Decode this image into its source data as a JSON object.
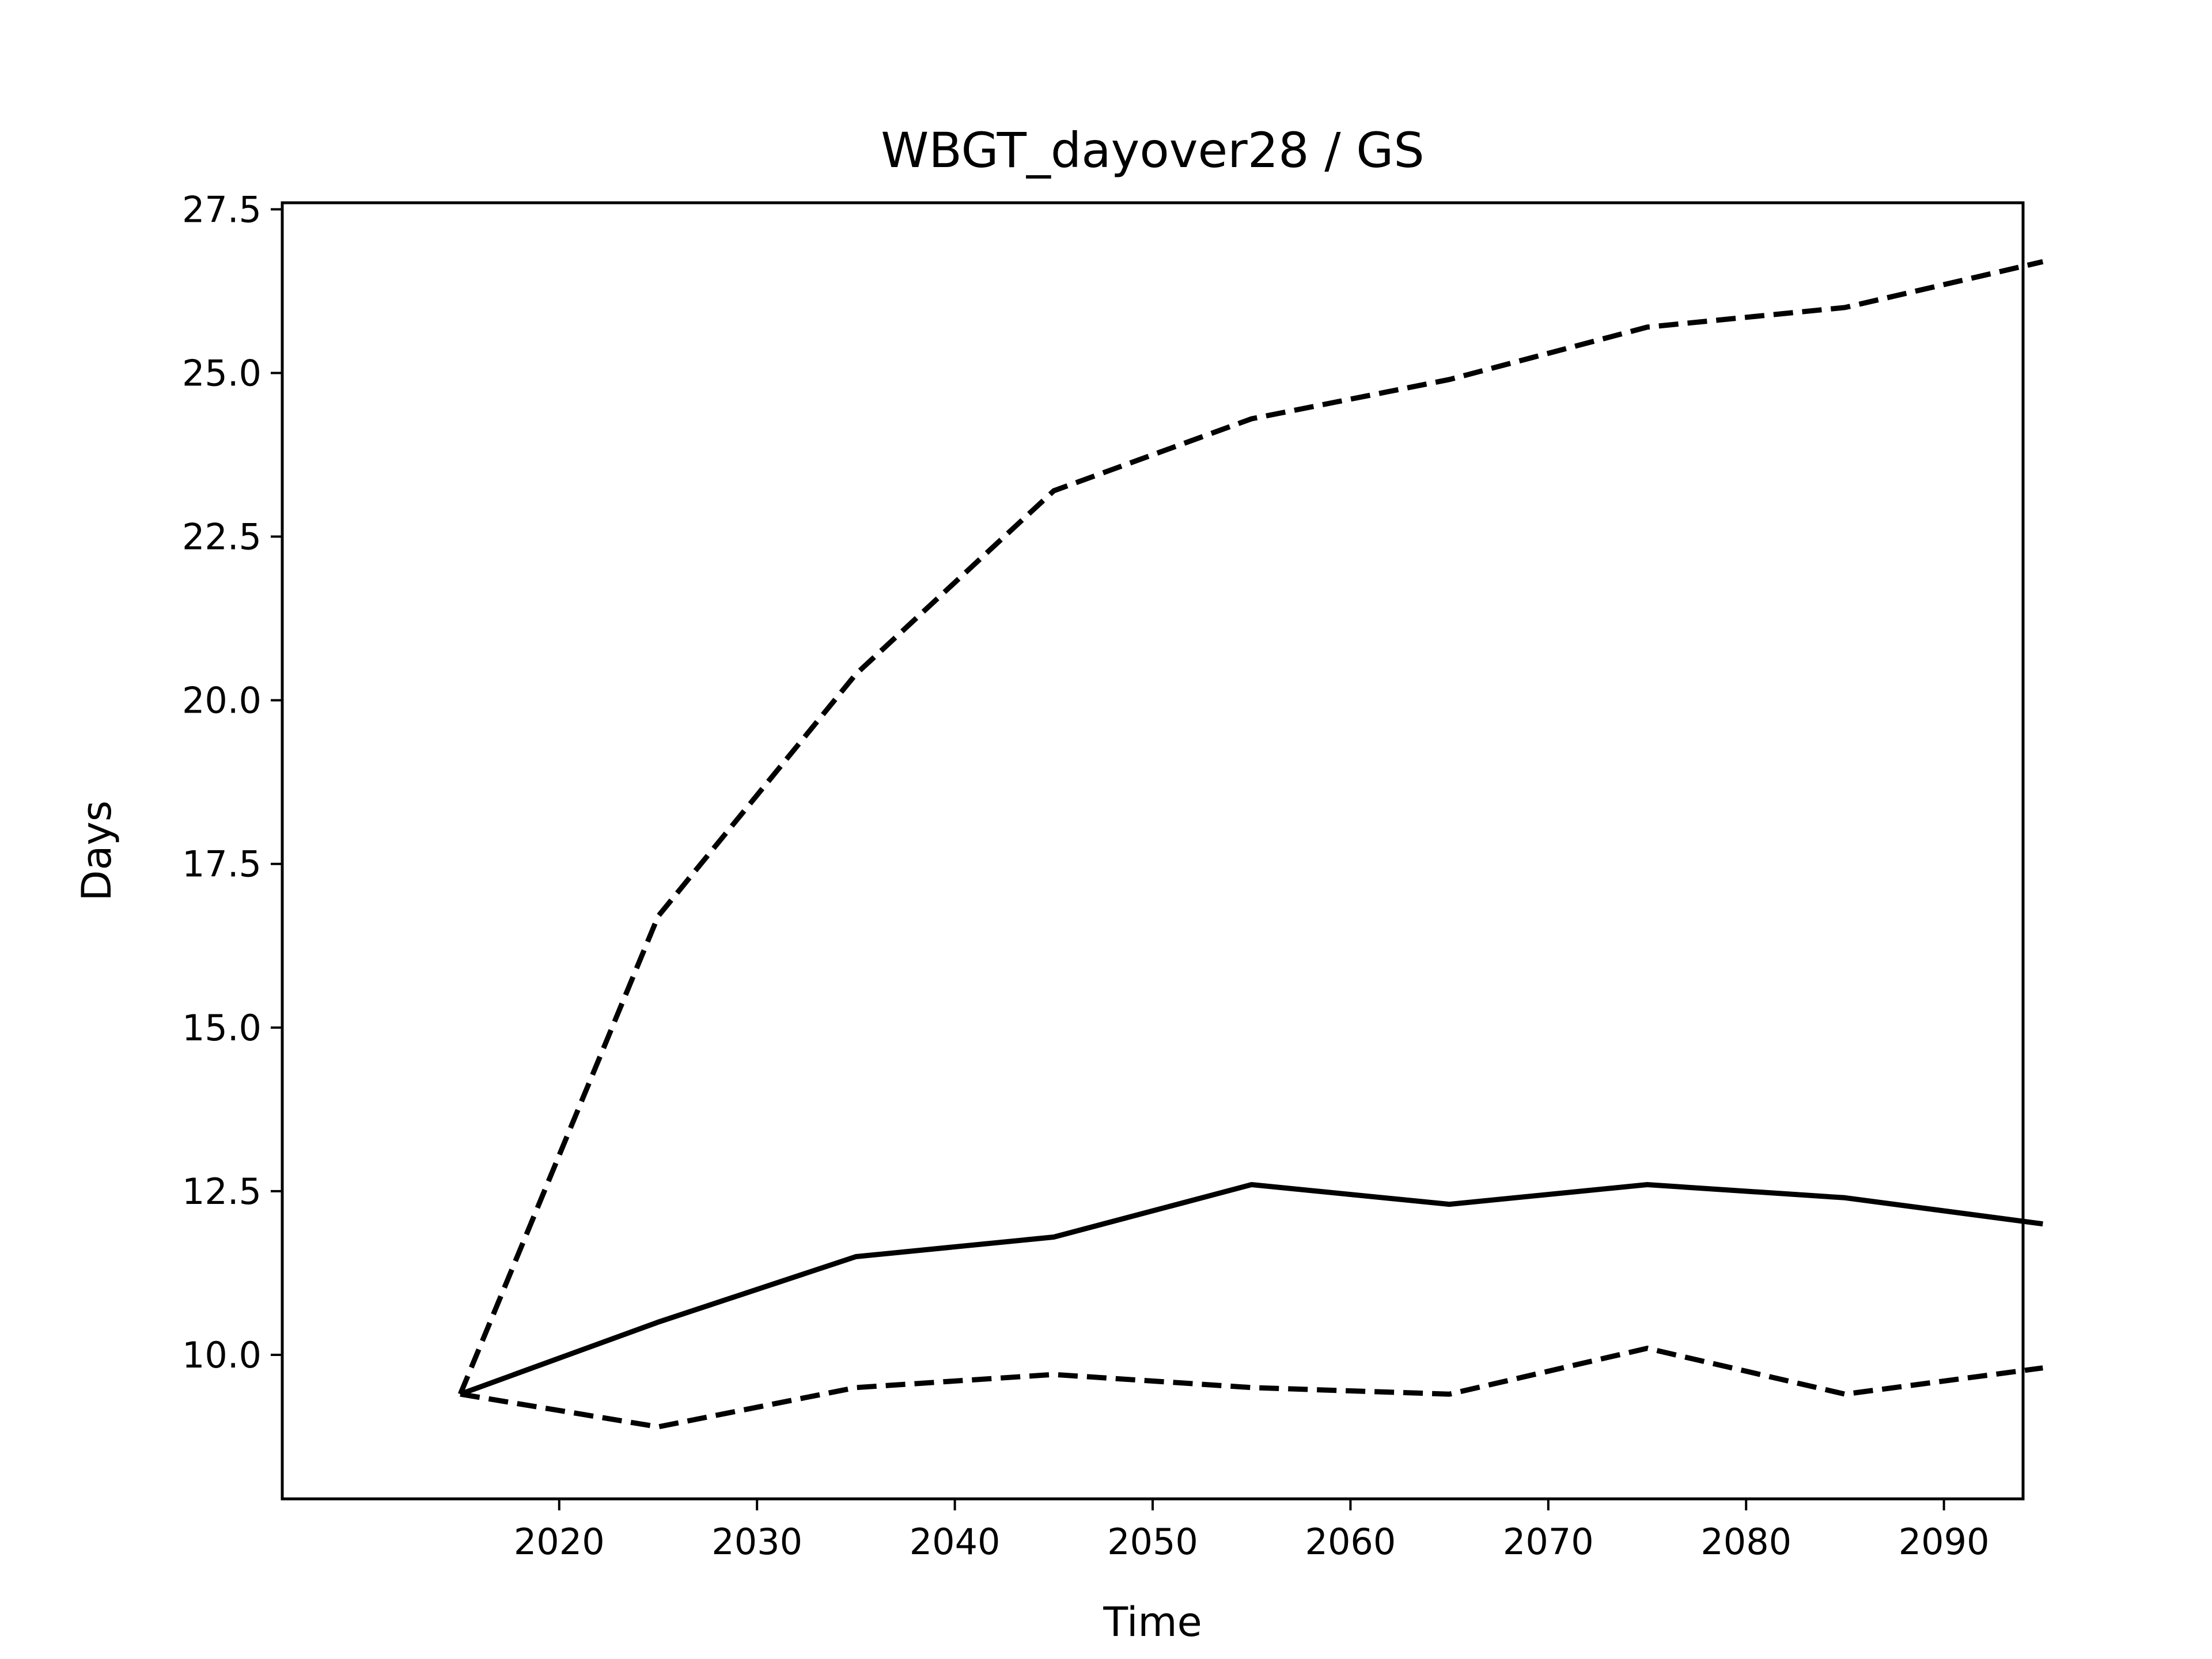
{
  "chart_data": {
    "type": "line",
    "title": "WBGT_dayover28 / GS",
    "xlabel": "Time",
    "ylabel": "Days",
    "x": [
      2015,
      2025,
      2035,
      2045,
      2055,
      2065,
      2075,
      2085,
      2095
    ],
    "xlim": [
      2006,
      2094
    ],
    "ylim": [
      7.8,
      27.6
    ],
    "xticks": [
      2020,
      2030,
      2040,
      2050,
      2060,
      2070,
      2080,
      2090
    ],
    "xtick_labels": [
      "2020",
      "2030",
      "2040",
      "2050",
      "2060",
      "2070",
      "2080",
      "2090"
    ],
    "yticks": [
      10.0,
      12.5,
      15.0,
      17.5,
      20.0,
      22.5,
      25.0,
      27.5
    ],
    "ytick_labels": [
      "10.0",
      "12.5",
      "15.0",
      "17.5",
      "20.0",
      "22.5",
      "25.0",
      "27.5"
    ],
    "grid": false,
    "legend": false,
    "series": [
      {
        "style": "dashed",
        "color": "#000000",
        "values": [
          9.4,
          16.7,
          20.4,
          23.2,
          24.3,
          24.9,
          25.7,
          26.0,
          26.7
        ]
      },
      {
        "style": "solid",
        "color": "#000000",
        "values": [
          9.4,
          10.5,
          11.5,
          11.8,
          12.6,
          12.3,
          12.6,
          12.4,
          12.0
        ]
      },
      {
        "style": "dashed",
        "color": "#000000",
        "values": [
          9.4,
          8.9,
          9.5,
          9.7,
          9.5,
          9.4,
          10.1,
          9.4,
          9.8
        ]
      }
    ]
  }
}
